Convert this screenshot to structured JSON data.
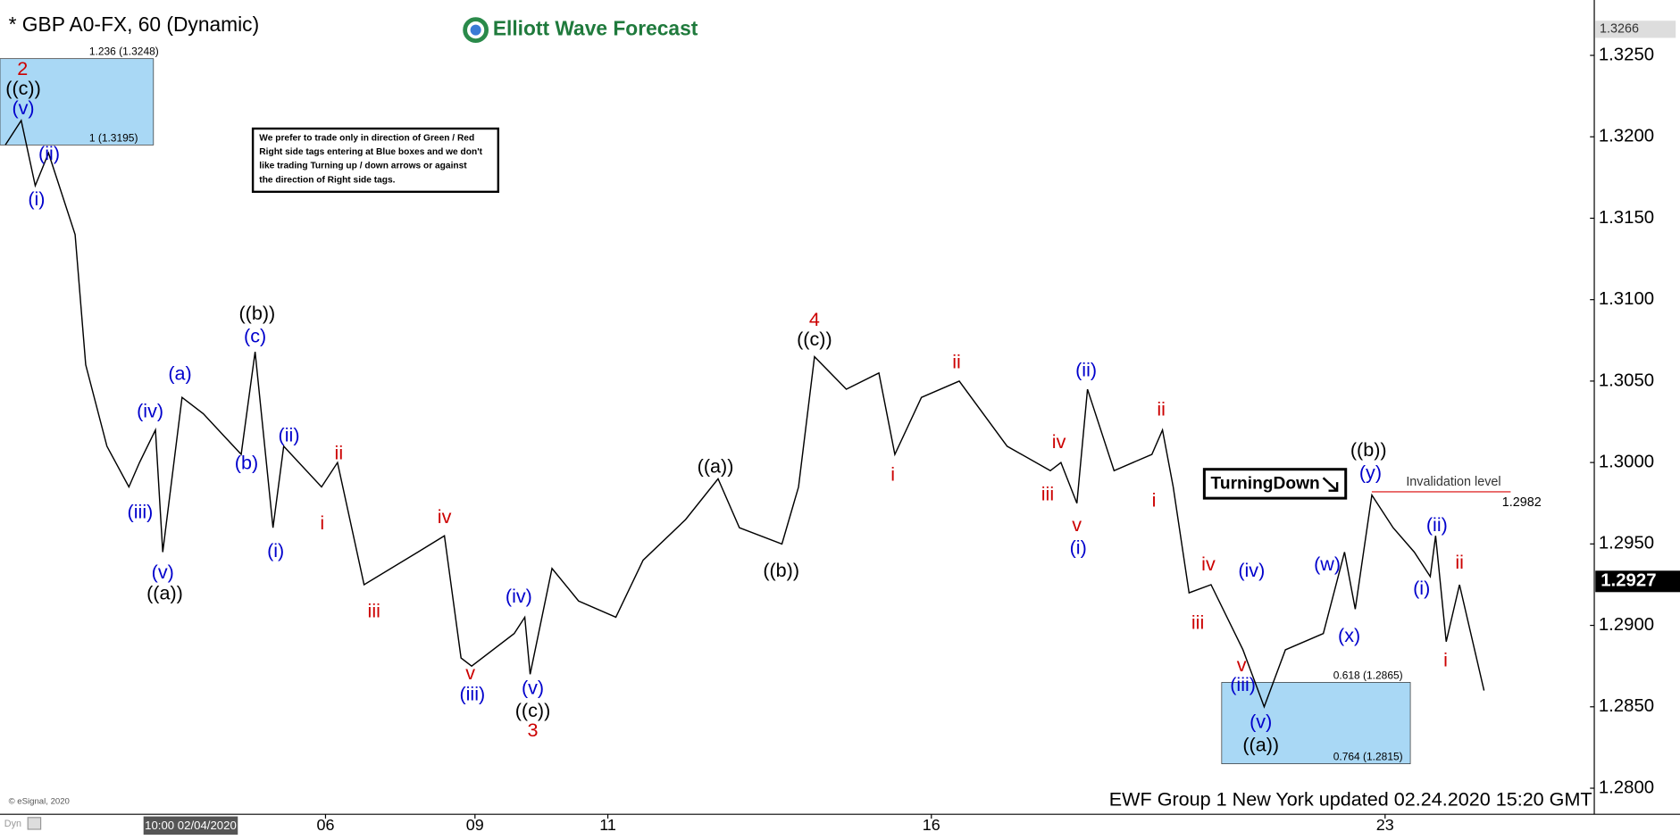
{
  "chart_data": {
    "type": "line",
    "title": "* GBP A0-FX, 60 (Dynamic)",
    "logo": "Elliott Wave Forecast",
    "note": [
      "We prefer to trade only in direction of Green / Red",
      "Right side tags entering at Blue boxes and we don't",
      "like trading Turning up / down arrows or against",
      "the direction of Right side tags."
    ],
    "tag": "TurningDown",
    "footer": "EWF Group 1 New York updated 02.24.2020 15:20 GMT",
    "copyright": "© eSignal, 2020",
    "mode": "Dyn",
    "xlim": [
      0,
      23.87
    ],
    "ylim": [
      1.2784,
      1.3284
    ],
    "xticks": [
      {
        "value": 4.9,
        "label": "06"
      },
      {
        "value": 7.15,
        "label": "09"
      },
      {
        "value": 9.15,
        "label": "11"
      },
      {
        "value": 14.02,
        "label": "16"
      },
      {
        "value": 20.85,
        "label": "23"
      }
    ],
    "date_marker": {
      "value": 2.87,
      "label": "10:00 02/04/2020"
    },
    "yticks": [
      {
        "value": 1.28,
        "label": "1.2800"
      },
      {
        "value": 1.285,
        "label": "1.2850"
      },
      {
        "value": 1.29,
        "label": "1.2900"
      },
      {
        "value": 1.295,
        "label": "1.2950"
      },
      {
        "value": 1.3,
        "label": "1.3000"
      },
      {
        "value": 1.305,
        "label": "1.3050"
      },
      {
        "value": 1.31,
        "label": "1.3100"
      },
      {
        "value": 1.315,
        "label": "1.3150"
      },
      {
        "value": 1.32,
        "label": "1.3200"
      },
      {
        "value": 1.325,
        "label": "1.3250"
      }
    ],
    "high_tag": 1.3266,
    "last_price": 1.2927,
    "series": [
      {
        "color": "#000000",
        "x": [
          0.08,
          0.32,
          0.53,
          0.73,
          1.13,
          1.29,
          1.61,
          1.94,
          2.1,
          2.34,
          2.45,
          2.74,
          3.06,
          3.63,
          3.84,
          4.11,
          4.27,
          4.84,
          5.08,
          5.48,
          6.29,
          6.69,
          6.94,
          7.1,
          7.74,
          7.9,
          7.98,
          8.31,
          8.71,
          9.27,
          9.68,
          10.32,
          10.81,
          11.13,
          11.77,
          12.02,
          12.26,
          12.74,
          13.23,
          13.47,
          13.87,
          14.44,
          15.16,
          15.81,
          15.97,
          16.21,
          16.37,
          16.77,
          17.34,
          17.5,
          17.66,
          17.9,
          18.23,
          18.71,
          19.03,
          19.35,
          19.92,
          20.24,
          20.4,
          20.65,
          20.97,
          21.29,
          21.53,
          21.61,
          21.77,
          21.97
        ],
        "values": [
          1.3195,
          1.321,
          1.317,
          1.319,
          1.314,
          1.306,
          1.301,
          1.2985,
          1.3,
          1.302,
          1.2945,
          1.304,
          1.303,
          1.3005,
          1.3068,
          1.296,
          1.301,
          1.2985,
          1.3,
          1.2925,
          1.2945,
          1.2955,
          1.288,
          1.2875,
          1.2895,
          1.2905,
          1.287,
          1.2935,
          1.2915,
          1.2905,
          1.294,
          1.2965,
          1.299,
          1.296,
          1.295,
          1.2985,
          1.3065,
          1.3045,
          1.3055,
          1.3005,
          1.304,
          1.305,
          1.301,
          1.2995,
          1.3,
          1.2975,
          1.3045,
          1.2995,
          1.3005,
          1.302,
          1.2985,
          1.292,
          1.2925,
          1.2885,
          1.285,
          1.2885,
          1.2895,
          1.2945,
          1.291,
          1.298,
          1.296,
          1.2945,
          1.293,
          1.2955,
          1.289,
          1.2925
        ]
      },
      {
        "color": "#000000",
        "x": [
          21.97,
          22.34
        ],
        "values": [
          1.2925,
          1.286
        ]
      }
    ],
    "boxes": [
      {
        "color": "#a9d8f5",
        "x": [
          0,
          2.31
        ],
        "top": {
          "value": 1.3248,
          "label": "1.236 (1.3248)"
        },
        "bottom": {
          "value": 1.3195,
          "label": "1 (1.3195)"
        }
      },
      {
        "color": "#a9d8f5",
        "x": [
          18.39,
          21.23
        ],
        "top": {
          "value": 1.2865,
          "label": "0.618 (1.2865)"
        },
        "bottom": {
          "value": 1.2815,
          "label": "0.764 (1.2815)"
        }
      }
    ],
    "invalidation": {
      "label": "Invalidation level",
      "value": 1.2982,
      "x": [
        20.65,
        22.74
      ],
      "color": "#e03030"
    },
    "annotations": [
      {
        "text": "2",
        "x": 0.34,
        "y": 1.3241,
        "color": "#cc0000"
      },
      {
        "text": "((c))",
        "x": 0.35,
        "y": 1.3229,
        "color": "#000000"
      },
      {
        "text": "(v)",
        "x": 0.35,
        "y": 1.3217,
        "color": "#0000cc"
      },
      {
        "text": "(ii)",
        "x": 0.74,
        "y": 1.3189,
        "color": "#0000cc"
      },
      {
        "text": "(i)",
        "x": 0.55,
        "y": 1.3161,
        "color": "#0000cc"
      },
      {
        "text": "(iv)",
        "x": 2.26,
        "y": 1.3031,
        "color": "#0000cc"
      },
      {
        "text": "(iii)",
        "x": 2.11,
        "y": 1.2969,
        "color": "#0000cc"
      },
      {
        "text": "(v)",
        "x": 2.45,
        "y": 1.2932,
        "color": "#0000cc"
      },
      {
        "text": "((a))",
        "x": 2.48,
        "y": 1.2919,
        "color": "#000000"
      },
      {
        "text": "(a)",
        "x": 2.71,
        "y": 1.3054,
        "color": "#0000cc"
      },
      {
        "text": "(b)",
        "x": 3.71,
        "y": 1.2999,
        "color": "#0000cc"
      },
      {
        "text": "(c)",
        "x": 3.84,
        "y": 1.3077,
        "color": "#0000cc"
      },
      {
        "text": "((b))",
        "x": 3.87,
        "y": 1.3091,
        "color": "#000000"
      },
      {
        "text": "(ii)",
        "x": 4.35,
        "y": 1.3016,
        "color": "#0000cc"
      },
      {
        "text": "(i)",
        "x": 4.15,
        "y": 1.2945,
        "color": "#0000cc"
      },
      {
        "text": "ii",
        "x": 5.1,
        "y": 1.3005,
        "color": "#cc0000"
      },
      {
        "text": "i",
        "x": 4.85,
        "y": 1.2962,
        "color": "#cc0000"
      },
      {
        "text": "iii",
        "x": 5.63,
        "y": 1.2908,
        "color": "#cc0000"
      },
      {
        "text": "iv",
        "x": 6.69,
        "y": 1.2966,
        "color": "#cc0000"
      },
      {
        "text": "v",
        "x": 7.08,
        "y": 1.287,
        "color": "#cc0000"
      },
      {
        "text": "(iii)",
        "x": 7.11,
        "y": 1.2857,
        "color": "#0000cc"
      },
      {
        "text": "(iv)",
        "x": 7.81,
        "y": 1.2917,
        "color": "#0000cc"
      },
      {
        "text": "(v)",
        "x": 8.02,
        "y": 1.2861,
        "color": "#0000cc"
      },
      {
        "text": "((c))",
        "x": 8.02,
        "y": 1.2847,
        "color": "#000000"
      },
      {
        "text": "3",
        "x": 8.02,
        "y": 1.2835,
        "color": "#cc0000"
      },
      {
        "text": "((a))",
        "x": 10.77,
        "y": 1.2997,
        "color": "#000000"
      },
      {
        "text": "((b))",
        "x": 11.76,
        "y": 1.2933,
        "color": "#000000"
      },
      {
        "text": "4",
        "x": 12.26,
        "y": 1.3087,
        "color": "#cc0000"
      },
      {
        "text": "((c))",
        "x": 12.26,
        "y": 1.3075,
        "color": "#000000"
      },
      {
        "text": "i",
        "x": 13.44,
        "y": 1.2992,
        "color": "#cc0000"
      },
      {
        "text": "ii",
        "x": 14.4,
        "y": 1.3061,
        "color": "#cc0000"
      },
      {
        "text": "iii",
        "x": 15.77,
        "y": 1.298,
        "color": "#cc0000"
      },
      {
        "text": "iv",
        "x": 15.94,
        "y": 1.3012,
        "color": "#cc0000"
      },
      {
        "text": "v",
        "x": 16.21,
        "y": 1.2961,
        "color": "#cc0000"
      },
      {
        "text": "(i)",
        "x": 16.23,
        "y": 1.2947,
        "color": "#0000cc"
      },
      {
        "text": "(ii)",
        "x": 16.35,
        "y": 1.3056,
        "color": "#0000cc"
      },
      {
        "text": "ii",
        "x": 17.48,
        "y": 1.3032,
        "color": "#cc0000"
      },
      {
        "text": "i",
        "x": 17.37,
        "y": 1.2976,
        "color": "#cc0000"
      },
      {
        "text": "iv",
        "x": 18.19,
        "y": 1.2937,
        "color": "#cc0000"
      },
      {
        "text": "iii",
        "x": 18.03,
        "y": 1.2901,
        "color": "#cc0000"
      },
      {
        "text": "(iv)",
        "x": 18.84,
        "y": 1.2933,
        "color": "#0000cc"
      },
      {
        "text": "v",
        "x": 18.69,
        "y": 1.2875,
        "color": "#cc0000"
      },
      {
        "text": "(iii)",
        "x": 18.71,
        "y": 1.2863,
        "color": "#0000cc"
      },
      {
        "text": "(v)",
        "x": 18.98,
        "y": 1.284,
        "color": "#0000cc"
      },
      {
        "text": "((a))",
        "x": 18.98,
        "y": 1.2826,
        "color": "#000000"
      },
      {
        "text": "(w)",
        "x": 19.98,
        "y": 1.2937,
        "color": "#0000cc"
      },
      {
        "text": "(x)",
        "x": 20.31,
        "y": 1.2893,
        "color": "#0000cc"
      },
      {
        "text": "((b))",
        "x": 20.6,
        "y": 1.3007,
        "color": "#000000"
      },
      {
        "text": "(y)",
        "x": 20.63,
        "y": 1.2993,
        "color": "#0000cc"
      },
      {
        "text": "(ii)",
        "x": 21.63,
        "y": 1.2961,
        "color": "#0000cc"
      },
      {
        "text": "(i)",
        "x": 21.4,
        "y": 1.2922,
        "color": "#0000cc"
      },
      {
        "text": "ii",
        "x": 21.97,
        "y": 1.2938,
        "color": "#cc0000"
      },
      {
        "text": "i",
        "x": 21.76,
        "y": 1.2878,
        "color": "#cc0000"
      }
    ]
  }
}
